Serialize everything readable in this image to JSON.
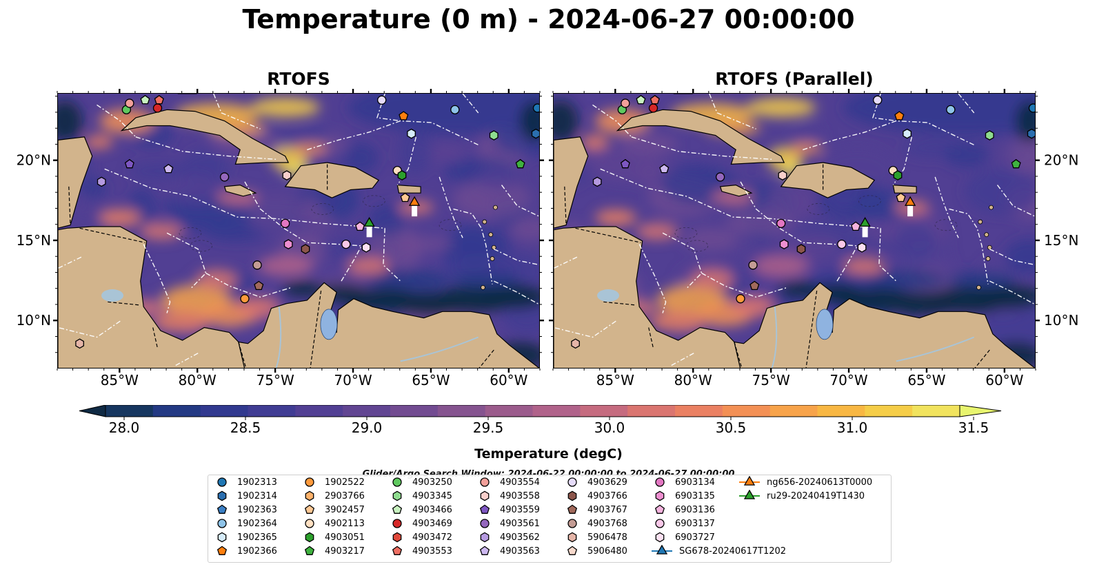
{
  "title": "Temperature (0 m) - 2024-06-27 00:00:00",
  "panels": [
    {
      "title": "RTOFS"
    },
    {
      "title": "RTOFS (Parallel)"
    }
  ],
  "axes": {
    "lat_ticks": [
      "20°N",
      "15°N",
      "10°N"
    ],
    "lon_ticks": [
      "85°W",
      "80°W",
      "75°W",
      "70°W",
      "65°W",
      "60°W"
    ]
  },
  "map_extent": {
    "lon": [
      -89,
      -58
    ],
    "lat": [
      7,
      24.2
    ]
  },
  "colorbar": {
    "title": "Temperature (degC)",
    "ticks": [
      "28.0",
      "28.5",
      "29.0",
      "29.5",
      "30.0",
      "30.5",
      "31.0",
      "31.5"
    ],
    "range": [
      28.0,
      31.5
    ],
    "extend": "both",
    "colors": [
      "#0f2a44",
      "#16365f",
      "#233983",
      "#31398f",
      "#403c93",
      "#513f93",
      "#614592",
      "#724b91",
      "#85538f",
      "#9b5b8c",
      "#b0628a",
      "#c56b7f",
      "#da7570",
      "#ea8062",
      "#f39055",
      "#f7a34a",
      "#f8b743",
      "#f5cd48",
      "#f1e35e",
      "#e8f56f"
    ]
  },
  "search_window": "Glider/Argo Search Window: 2024-06-22 00:00:00 to 2024-06-27 00:00:00",
  "colors": {
    "land": "#d2b48c",
    "ocean_mid": "#513f93",
    "deep_cool": "#0f2a44"
  },
  "legend": [
    {
      "label": "1902313",
      "marker": "circle",
      "color": "#1f77b4"
    },
    {
      "label": "1902314",
      "marker": "hexagon",
      "color": "#2b6fb0"
    },
    {
      "label": "1902363",
      "marker": "pentagon",
      "color": "#3b7fc4"
    },
    {
      "label": "1902364",
      "marker": "circle",
      "color": "#8ec3e8"
    },
    {
      "label": "1902365",
      "marker": "hexagon",
      "color": "#d6ecfa"
    },
    {
      "label": "1902366",
      "marker": "pentagon",
      "color": "#ff7f0e"
    },
    {
      "label": "1902522",
      "marker": "circle",
      "color": "#ff9a3c"
    },
    {
      "label": "2903766",
      "marker": "hexagon",
      "color": "#ffb26b"
    },
    {
      "label": "3902457",
      "marker": "pentagon",
      "color": "#ffc894"
    },
    {
      "label": "4902113",
      "marker": "circle",
      "color": "#ffe0c2"
    },
    {
      "label": "4903051",
      "marker": "hexagon",
      "color": "#2ca02c"
    },
    {
      "label": "4903217",
      "marker": "pentagon",
      "color": "#3fb23f"
    },
    {
      "label": "4903250",
      "marker": "circle",
      "color": "#5fc95f"
    },
    {
      "label": "4903345",
      "marker": "hexagon",
      "color": "#8fdc8f"
    },
    {
      "label": "4903466",
      "marker": "pentagon",
      "color": "#c8f2c0"
    },
    {
      "label": "4903469",
      "marker": "circle",
      "color": "#d62728"
    },
    {
      "label": "4903472",
      "marker": "hexagon",
      "color": "#e0483a"
    },
    {
      "label": "4903553",
      "marker": "pentagon",
      "color": "#ef6f63"
    },
    {
      "label": "4903554",
      "marker": "circle",
      "color": "#f3a09a"
    },
    {
      "label": "4903558",
      "marker": "hexagon",
      "color": "#f9cfcb"
    },
    {
      "label": "4903559",
      "marker": "pentagon",
      "color": "#7e57c2"
    },
    {
      "label": "4903561",
      "marker": "circle",
      "color": "#9467bd"
    },
    {
      "label": "4903562",
      "marker": "hexagon",
      "color": "#b59ae0"
    },
    {
      "label": "4903563",
      "marker": "pentagon",
      "color": "#cdb8f0"
    },
    {
      "label": "4903629",
      "marker": "circle",
      "color": "#e6dcfa"
    },
    {
      "label": "4903766",
      "marker": "hexagon",
      "color": "#8c564b"
    },
    {
      "label": "4903767",
      "marker": "pentagon",
      "color": "#a16a5c"
    },
    {
      "label": "4903768",
      "marker": "circle",
      "color": "#c49c94"
    },
    {
      "label": "5906478",
      "marker": "hexagon",
      "color": "#e5b5a8"
    },
    {
      "label": "5906480",
      "marker": "pentagon",
      "color": "#f7d9cc"
    },
    {
      "label": "6903134",
      "marker": "circle",
      "color": "#e377c2"
    },
    {
      "label": "6903135",
      "marker": "hexagon",
      "color": "#ee8fd0"
    },
    {
      "label": "6903136",
      "marker": "pentagon",
      "color": "#f5b3de"
    },
    {
      "label": "6903137",
      "marker": "circle",
      "color": "#f9c8e8"
    },
    {
      "label": "6903727",
      "marker": "hexagon",
      "color": "#fce1f2"
    },
    {
      "label": "SG678-20240617T1202",
      "marker": "triangle",
      "color": "#1f77b4"
    },
    {
      "label": "ng656-20240613T0000",
      "marker": "triangle",
      "color": "#ff7f0e"
    },
    {
      "label": "ru29-20240419T1430",
      "marker": "triangle",
      "color": "#2ca02c"
    }
  ],
  "map_points": [
    {
      "label": "1902313",
      "lon": -58.2,
      "lat": 23.3
    },
    {
      "label": "1902314",
      "lon": -58.3,
      "lat": 21.7
    },
    {
      "label": "1902364",
      "lon": -63.5,
      "lat": 23.2
    },
    {
      "label": "1902365",
      "lon": -66.3,
      "lat": 21.7
    },
    {
      "label": "1902366",
      "lon": -66.8,
      "lat": 22.8
    },
    {
      "label": "1902522",
      "lon": -77.0,
      "lat": 11.4
    },
    {
      "label": "3902457",
      "lon": -66.7,
      "lat": 17.7
    },
    {
      "label": "4902113",
      "lon": -67.2,
      "lat": 19.4
    },
    {
      "label": "4903051",
      "lon": -66.9,
      "lat": 19.1
    },
    {
      "label": "4903217",
      "lon": -59.3,
      "lat": 19.8
    },
    {
      "label": "4903250",
      "lon": -84.6,
      "lat": 23.2
    },
    {
      "label": "4903345",
      "lon": -61.0,
      "lat": 21.6
    },
    {
      "label": "4903466",
      "lon": -83.4,
      "lat": 23.8
    },
    {
      "label": "4903469",
      "lon": -82.6,
      "lat": 23.3
    },
    {
      "label": "4903553",
      "lon": -82.5,
      "lat": 23.8
    },
    {
      "label": "4903554",
      "lon": -84.4,
      "lat": 23.6
    },
    {
      "label": "4903558",
      "lon": -74.3,
      "lat": 19.1
    },
    {
      "label": "4903559",
      "lon": -84.4,
      "lat": 19.8
    },
    {
      "label": "4903561",
      "lon": -78.3,
      "lat": 19.0
    },
    {
      "label": "4903562",
      "lon": -86.2,
      "lat": 18.7
    },
    {
      "label": "4903563",
      "lon": -81.9,
      "lat": 19.5
    },
    {
      "label": "4903629",
      "lon": -68.2,
      "lat": 23.8
    },
    {
      "label": "4903766",
      "lon": -73.1,
      "lat": 14.5
    },
    {
      "label": "4903767",
      "lon": -76.1,
      "lat": 12.2
    },
    {
      "label": "4903768",
      "lon": -76.2,
      "lat": 13.5
    },
    {
      "label": "5906478",
      "lon": -87.6,
      "lat": 8.6
    },
    {
      "label": "6903134",
      "lon": -74.4,
      "lat": 16.1
    },
    {
      "label": "6903135",
      "lon": -74.2,
      "lat": 14.8
    },
    {
      "label": "6903136",
      "lon": -69.6,
      "lat": 15.9
    },
    {
      "label": "6903137",
      "lon": -70.5,
      "lat": 14.8
    },
    {
      "label": "6903727",
      "lon": -69.2,
      "lat": 14.6
    },
    {
      "label": "ng656-20240613T0000",
      "lon": -66.1,
      "lat": 17.4
    },
    {
      "label": "ru29-20240419T1430",
      "lon": -69.0,
      "lat": 16.1
    }
  ]
}
